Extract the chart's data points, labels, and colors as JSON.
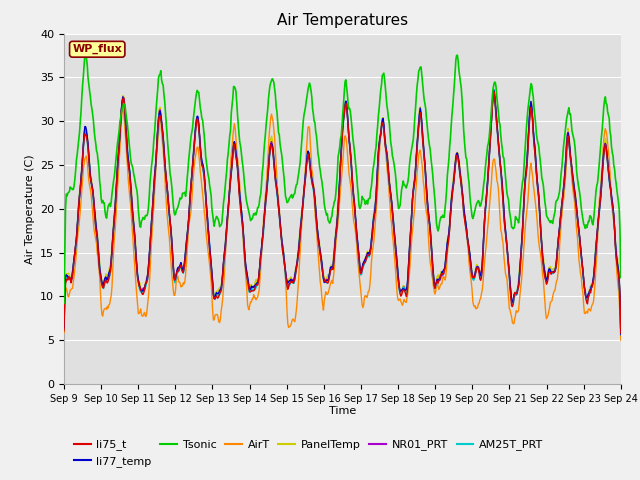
{
  "title": "Air Temperatures",
  "xlabel": "Time",
  "ylabel": "Air Temperature (C)",
  "ylim": [
    0,
    40
  ],
  "n_days": 15,
  "xtick_labels": [
    "Sep 9",
    "Sep 10",
    "Sep 11",
    "Sep 12",
    "Sep 13",
    "Sep 14",
    "Sep 15",
    "Sep 16",
    "Sep 17",
    "Sep 18",
    "Sep 19",
    "Sep 20",
    "Sep 21",
    "Sep 22",
    "Sep 23",
    "Sep 24"
  ],
  "plot_bg": "#e0e0e0",
  "fig_bg": "#f0f0f0",
  "series": {
    "li75_t": {
      "color": "#dd0000",
      "lw": 1.0
    },
    "li77_temp": {
      "color": "#0000cc",
      "lw": 1.0
    },
    "Tsonic": {
      "color": "#00cc00",
      "lw": 1.2
    },
    "AirT": {
      "color": "#ff8800",
      "lw": 1.0
    },
    "PanelTemp": {
      "color": "#cccc00",
      "lw": 1.0
    },
    "NR01_PRT": {
      "color": "#aa00cc",
      "lw": 1.0
    },
    "AM25T_PRT": {
      "color": "#00cccc",
      "lw": 1.2
    }
  },
  "legend_label": "WP_flux",
  "legend_label_color": "#8b0000",
  "legend_box_facecolor": "#ffff99",
  "legend_box_edgecolor": "#8b0000",
  "grid_color": "#ffffff",
  "yticks": [
    0,
    5,
    10,
    15,
    20,
    25,
    30,
    35,
    40
  ]
}
